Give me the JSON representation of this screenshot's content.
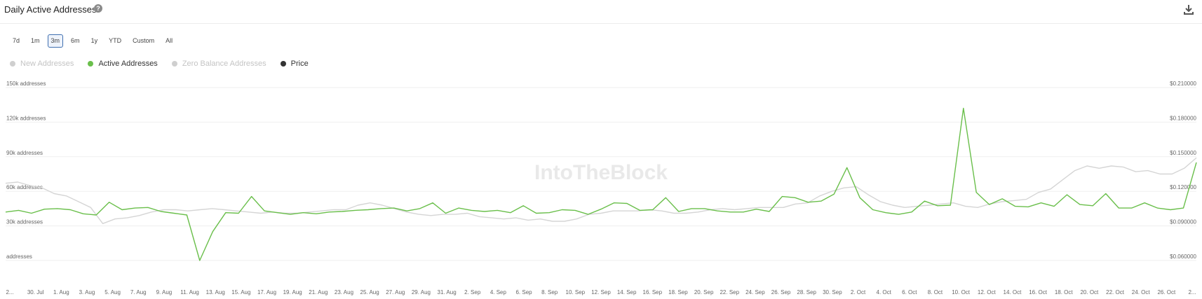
{
  "header": {
    "title": "Daily Active Addresses",
    "help_glyph": "?",
    "download_icon": "download-icon"
  },
  "ranges": {
    "items": [
      "7d",
      "1m",
      "3m",
      "6m",
      "1y",
      "YTD",
      "Custom",
      "All"
    ],
    "selected": "3m"
  },
  "legend": [
    {
      "label": "New Addresses",
      "color": "#cfcfcf",
      "state": "off"
    },
    {
      "label": "Active Addresses",
      "color": "#6abf4b",
      "state": "on"
    },
    {
      "label": "Zero Balance Addresses",
      "color": "#cfcfcf",
      "state": "off"
    },
    {
      "label": "Price",
      "color": "#333333",
      "state": "on"
    }
  ],
  "watermark": "IntoTheBlock",
  "chart_data": {
    "type": "line",
    "ylabel_left_ticks": [
      "150k addresses",
      "120k addresses",
      "90k addresses",
      "60k addresses",
      "30k addresses",
      "addresses"
    ],
    "ylim_left": [
      0,
      150000
    ],
    "ylabel_right_ticks": [
      "$0.210000",
      "$0.180000",
      "$0.150000",
      "$0.120000",
      "$0.090000",
      "$0.060000"
    ],
    "ylim_right": [
      0.06,
      0.21
    ],
    "x_tick_labels": [
      "2...",
      "30. Jul",
      "1. Aug",
      "3. Aug",
      "5. Aug",
      "7. Aug",
      "9. Aug",
      "11. Aug",
      "13. Aug",
      "15. Aug",
      "17. Aug",
      "19. Aug",
      "21. Aug",
      "23. Aug",
      "25. Aug",
      "27. Aug",
      "29. Aug",
      "31. Aug",
      "2. Sep",
      "4. Sep",
      "6. Sep",
      "8. Sep",
      "10. Sep",
      "12. Sep",
      "14. Sep",
      "16. Sep",
      "18. Sep",
      "20. Sep",
      "22. Sep",
      "24. Sep",
      "26. Sep",
      "28. Sep",
      "30. Sep",
      "2. Oct",
      "4. Oct",
      "6. Oct",
      "8. Oct",
      "10. Oct",
      "12. Oct",
      "14. Oct",
      "16. Oct",
      "18. Oct",
      "20. Oct",
      "22. Oct",
      "24. Oct",
      "26. Oct",
      "2..."
    ],
    "grid": true,
    "series": [
      {
        "name": "Active Addresses",
        "axis": "left",
        "color": "#6abf4b",
        "values": [
          42000,
          43500,
          41000,
          44500,
          45000,
          44000,
          40500,
          39500,
          50500,
          44000,
          45500,
          46000,
          42500,
          41000,
          39500,
          0,
          25000,
          41500,
          41000,
          55500,
          43000,
          41500,
          40000,
          41500,
          40500,
          42000,
          42500,
          43500,
          44000,
          45000,
          45500,
          43000,
          45000,
          50000,
          41000,
          45500,
          43500,
          42500,
          43500,
          41500,
          47500,
          41000,
          41500,
          44000,
          43500,
          40000,
          44500,
          50000,
          49500,
          43500,
          44000,
          54500,
          42500,
          45000,
          45000,
          43000,
          42000,
          42000,
          44500,
          42500,
          55500,
          54500,
          50500,
          51500,
          57500,
          80500,
          54500,
          44000,
          41500,
          40000,
          42000,
          51500,
          47500,
          48000,
          132000,
          59000,
          48500,
          53500,
          47000,
          46500,
          50000,
          47000,
          57000,
          48500,
          47500,
          58000,
          45500,
          45500,
          50000,
          45500,
          44000,
          45500,
          85000
        ]
      },
      {
        "name": "Price",
        "axis": "right",
        "color": "#d5d5d5",
        "values": [
          0.127,
          0.128,
          0.125,
          0.123,
          0.118,
          0.116,
          0.111,
          0.106,
          0.092,
          0.096,
          0.097,
          0.099,
          0.102,
          0.104,
          0.104,
          0.103,
          0.104,
          0.105,
          0.104,
          0.103,
          0.102,
          0.101,
          0.102,
          0.101,
          0.101,
          0.102,
          0.103,
          0.104,
          0.104,
          0.108,
          0.11,
          0.108,
          0.105,
          0.102,
          0.1,
          0.099,
          0.1,
          0.1,
          0.101,
          0.098,
          0.097,
          0.096,
          0.097,
          0.095,
          0.096,
          0.094,
          0.094,
          0.096,
          0.1,
          0.101,
          0.103,
          0.103,
          0.103,
          0.104,
          0.103,
          0.101,
          0.101,
          0.102,
          0.104,
          0.105,
          0.104,
          0.105,
          0.106,
          0.106,
          0.106,
          0.109,
          0.11,
          0.116,
          0.12,
          0.123,
          0.124,
          0.117,
          0.111,
          0.108,
          0.106,
          0.107,
          0.108,
          0.109,
          0.11,
          0.107,
          0.106,
          0.109,
          0.111,
          0.112,
          0.113,
          0.119,
          0.122,
          0.13,
          0.138,
          0.142,
          0.14,
          0.142,
          0.141,
          0.137,
          0.138,
          0.135,
          0.135,
          0.14,
          0.149
        ]
      }
    ]
  }
}
